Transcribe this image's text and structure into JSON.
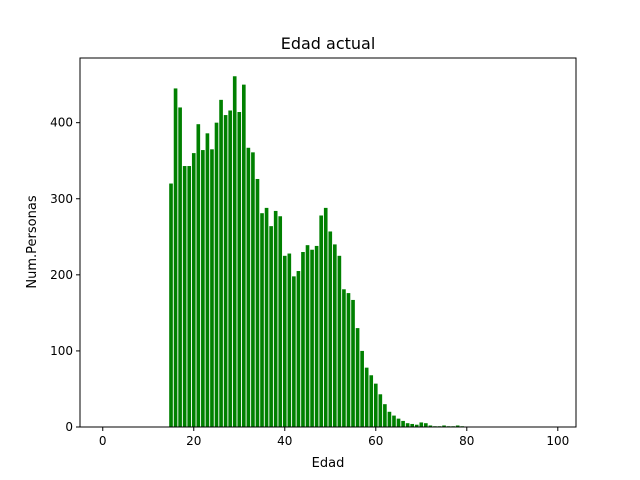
{
  "chart_data": {
    "type": "bar",
    "title": "Edad actual",
    "xlabel": "Edad",
    "ylabel": "Num.Personas",
    "xlim": [
      -5,
      104
    ],
    "ylim": [
      0,
      485
    ],
    "xticks": [
      0,
      20,
      40,
      60,
      80,
      100
    ],
    "yticks": [
      0,
      100,
      200,
      300,
      400
    ],
    "grid": false,
    "bar_color": "#008000",
    "x": [
      15,
      16,
      17,
      18,
      19,
      20,
      21,
      22,
      23,
      24,
      25,
      26,
      27,
      28,
      29,
      30,
      31,
      32,
      33,
      34,
      35,
      36,
      37,
      38,
      39,
      40,
      41,
      42,
      43,
      44,
      45,
      46,
      47,
      48,
      49,
      50,
      51,
      52,
      53,
      54,
      55,
      56,
      57,
      58,
      59,
      60,
      61,
      62,
      63,
      64,
      65,
      66,
      67,
      68,
      69,
      70,
      71,
      72,
      73,
      74,
      75,
      76,
      77,
      78,
      79,
      80,
      81,
      82,
      83,
      84
    ],
    "values": [
      320,
      445,
      420,
      343,
      343,
      360,
      398,
      364,
      386,
      365,
      400,
      430,
      410,
      416,
      461,
      414,
      450,
      367,
      361,
      326,
      281,
      288,
      264,
      284,
      277,
      225,
      228,
      198,
      205,
      230,
      239,
      233,
      238,
      278,
      288,
      257,
      240,
      225,
      181,
      176,
      167,
      130,
      100,
      78,
      68,
      57,
      43,
      30,
      20,
      15,
      11,
      8,
      5,
      4,
      3,
      6,
      5,
      2,
      1,
      1,
      2,
      1,
      1,
      2,
      1,
      0,
      0,
      0,
      0,
      0
    ]
  }
}
